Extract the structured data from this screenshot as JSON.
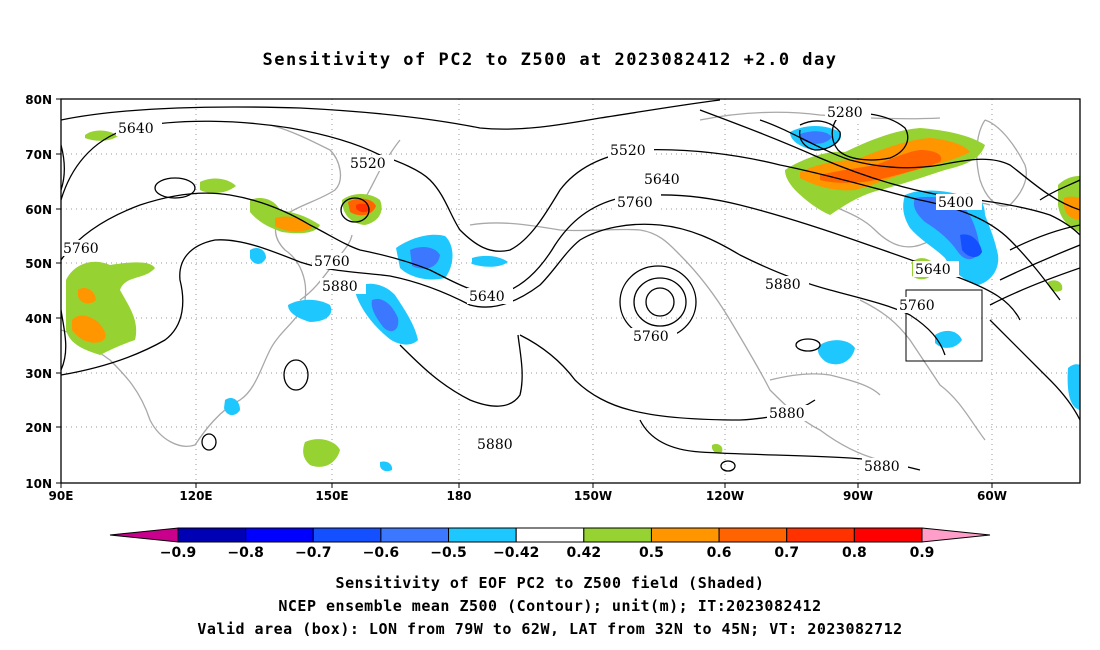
{
  "title": "Sensitivity of PC2 to Z500 at 2023082412 +2.0 day",
  "map": {
    "lat_labels": [
      "80N",
      "70N",
      "60N",
      "50N",
      "40N",
      "30N",
      "20N",
      "10N"
    ],
    "lon_labels": [
      "90E",
      "120E",
      "150E",
      "180",
      "150W",
      "120W",
      "90W",
      "60W"
    ],
    "lon_range": [
      "90E",
      "35W"
    ],
    "lat_range": [
      "10N",
      "80N"
    ],
    "gridlines": "dotted",
    "coastline_color": "#a8a8a8",
    "contour_labels": [
      "5640",
      "5520",
      "5760",
      "5760",
      "5880",
      "5640",
      "5520",
      "5640",
      "5760",
      "5760",
      "5880",
      "5280",
      "5400",
      "5640",
      "5760",
      "5880",
      "5880",
      "5880"
    ],
    "valid_box": {
      "lon": [
        "79W",
        "62W"
      ],
      "lat": [
        "32N",
        "45N"
      ]
    }
  },
  "colorbar": {
    "labels": [
      "-0.9",
      "-0.8",
      "-0.7",
      "-0.6",
      "-0.5",
      "-0.42",
      "0.42",
      "0.5",
      "0.6",
      "0.7",
      "0.8",
      "0.9"
    ],
    "colors": [
      "#c8008c",
      "#0000b4",
      "#0000ff",
      "#1450ff",
      "#3c78ff",
      "#1ec8ff",
      "#ffffff",
      "#96d232",
      "#ff9600",
      "#ff6400",
      "#ff3200",
      "#ff0000",
      "#ff9ec8"
    ]
  },
  "captions": [
    "Sensitivity of EOF PC2 to Z500 field (Shaded)",
    "NCEP ensemble mean Z500 (Contour); unit(m); IT:2023082412",
    "Valid area (box): LON from 79W to 62W, LAT from 32N to 45N; VT: 2023082712"
  ]
}
